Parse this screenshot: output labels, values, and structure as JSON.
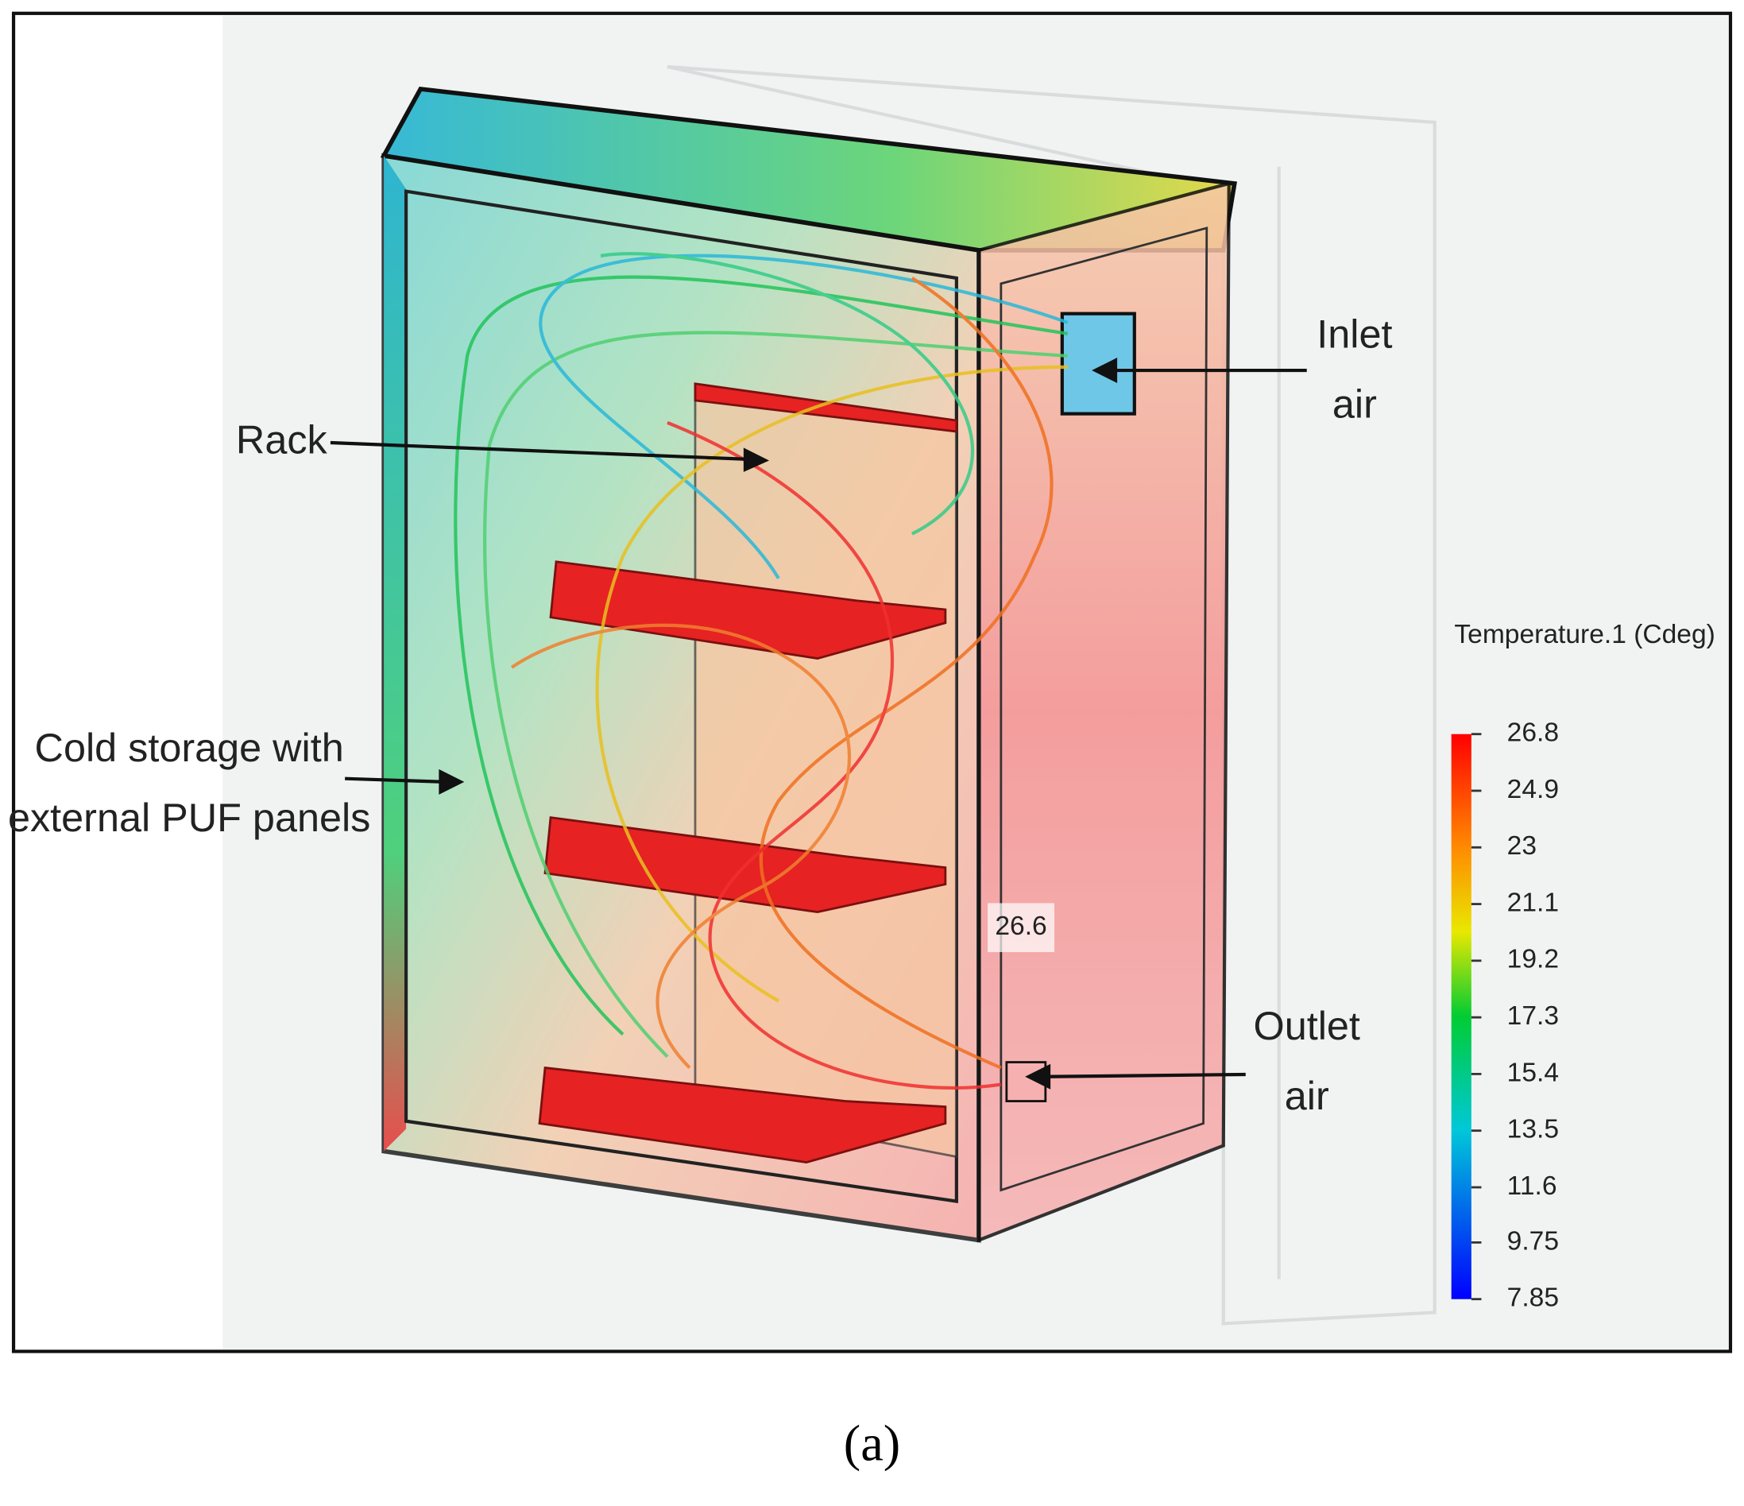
{
  "labels": {
    "rack": [
      "Rack"
    ],
    "inlet": [
      "Inlet",
      "air"
    ],
    "outlet": [
      "Outlet",
      "air"
    ],
    "cold_storage": [
      "Cold storage with",
      "external PUF panels"
    ],
    "probe": "26.6"
  },
  "colorbar": {
    "title": "Temperature.1 (Cdeg)",
    "ticks": [
      26.8,
      24.9,
      23,
      21.1,
      19.2,
      17.3,
      15.4,
      13.5,
      11.6,
      9.75,
      7.85
    ]
  },
  "caption": "(a)"
}
